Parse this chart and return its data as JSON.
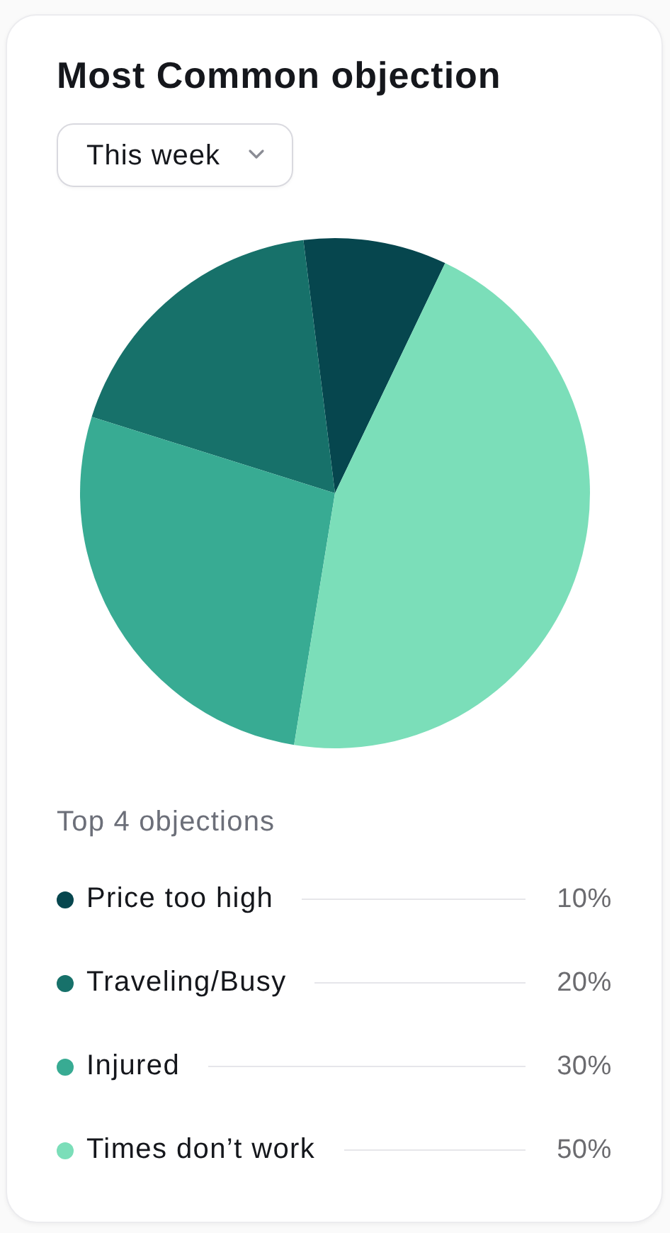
{
  "chart_data": {
    "type": "pie",
    "title": "Most Common objection",
    "subtitle": "This week",
    "legend_title": "Top 4 objections",
    "categories": [
      "Price too high",
      "Traveling/Busy",
      "Injured",
      "Times don’t work"
    ],
    "values": [
      10,
      20,
      30,
      50
    ],
    "colors": [
      "#06464e",
      "#17716a",
      "#38ab93",
      "#7bdeb9"
    ],
    "value_labels": [
      "10%",
      "20%",
      "30%",
      "50%"
    ],
    "legend": "bottom"
  }
}
